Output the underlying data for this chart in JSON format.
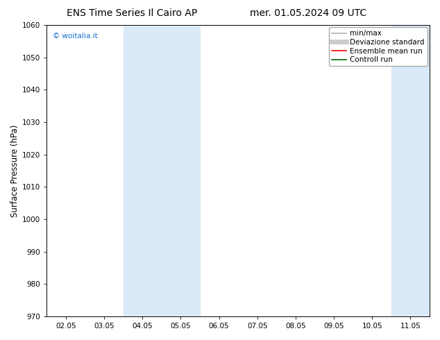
{
  "title": "ENS Time Series Il Cairo AP",
  "title2": "mer. 01.05.2024 09 UTC",
  "ylabel": "Surface Pressure (hPa)",
  "ylim": [
    970,
    1060
  ],
  "yticks": [
    970,
    980,
    990,
    1000,
    1010,
    1020,
    1030,
    1040,
    1050,
    1060
  ],
  "xtick_labels": [
    "02.05",
    "03.05",
    "04.05",
    "05.05",
    "06.05",
    "07.05",
    "08.05",
    "09.05",
    "10.05",
    "11.05"
  ],
  "background_color": "#ffffff",
  "shaded_color": "#daeaf8",
  "watermark": "© woitalia.it",
  "watermark_color": "#1a6fcc",
  "legend_entries": [
    {
      "label": "min/max",
      "color": "#b0b0b0",
      "lw": 1.2
    },
    {
      "label": "Deviazione standard",
      "color": "#cccccc",
      "lw": 5
    },
    {
      "label": "Ensemble mean run",
      "color": "#ff0000",
      "lw": 1.2
    },
    {
      "label": "Controll run",
      "color": "#006600",
      "lw": 1.2
    }
  ],
  "title_fontsize": 10,
  "tick_fontsize": 7.5,
  "ylabel_fontsize": 8.5,
  "legend_fontsize": 7.5,
  "watermark_fontsize": 7.5
}
